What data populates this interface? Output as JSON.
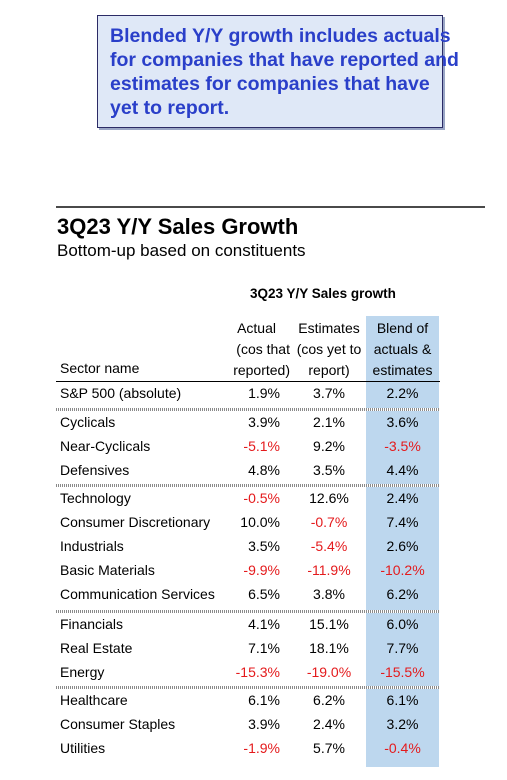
{
  "callout": {
    "lines": [
      "Blended Y/Y growth includes actuals",
      "for companies that have reported and",
      "estimates for companies that have",
      "yet to report."
    ]
  },
  "table": {
    "title": "3Q23 Y/Y Sales Growth",
    "subtitle": "Bottom-up based on constituents",
    "group_header": "3Q23 Y/Y Sales growth",
    "columns": {
      "sector": "Sector name",
      "actual": [
        "Actual",
        "(cos that",
        "reported)"
      ],
      "estimates": [
        "Estimates",
        "(cos yet to",
        "report)"
      ],
      "blend": [
        "Blend of",
        "actuals &",
        "estimates"
      ]
    },
    "colors": {
      "negative": "#e41a1c",
      "blend_highlight": "#bdd7ee",
      "callout_text": "#2a3fc9"
    },
    "rows": [
      {
        "name": "S&P 500 (absolute)",
        "actual": "1.9%",
        "estimates": "3.7%",
        "blend": "2.2%"
      },
      {
        "name": "Cyclicals",
        "actual": "3.9%",
        "estimates": "2.1%",
        "blend": "3.6%"
      },
      {
        "name": "Near-Cyclicals",
        "actual": "-5.1%",
        "estimates": "9.2%",
        "blend": "-3.5%"
      },
      {
        "name": "Defensives",
        "actual": "4.8%",
        "estimates": "3.5%",
        "blend": "4.4%"
      },
      {
        "name": "Technology",
        "actual": "-0.5%",
        "estimates": "12.6%",
        "blend": "2.4%"
      },
      {
        "name": "Consumer Discretionary",
        "actual": "10.0%",
        "estimates": "-0.7%",
        "blend": "7.4%"
      },
      {
        "name": "Industrials",
        "actual": "3.5%",
        "estimates": "-5.4%",
        "blend": "2.6%"
      },
      {
        "name": "Basic Materials",
        "actual": "-9.9%",
        "estimates": "-11.9%",
        "blend": "-10.2%"
      },
      {
        "name": "Communication Services",
        "actual": "6.5%",
        "estimates": "3.8%",
        "blend": "6.2%"
      },
      {
        "name": "Financials",
        "actual": "4.1%",
        "estimates": "15.1%",
        "blend": "6.0%"
      },
      {
        "name": "Real Estate",
        "actual": "7.1%",
        "estimates": "18.1%",
        "blend": "7.7%"
      },
      {
        "name": "Energy",
        "actual": "-15.3%",
        "estimates": "-19.0%",
        "blend": "-15.5%"
      },
      {
        "name": "Healthcare",
        "actual": "6.1%",
        "estimates": "6.2%",
        "blend": "6.1%"
      },
      {
        "name": "Consumer Staples",
        "actual": "3.9%",
        "estimates": "2.4%",
        "blend": "3.2%"
      },
      {
        "name": "Utilities",
        "actual": "-1.9%",
        "estimates": "5.7%",
        "blend": "-0.4%"
      }
    ]
  }
}
